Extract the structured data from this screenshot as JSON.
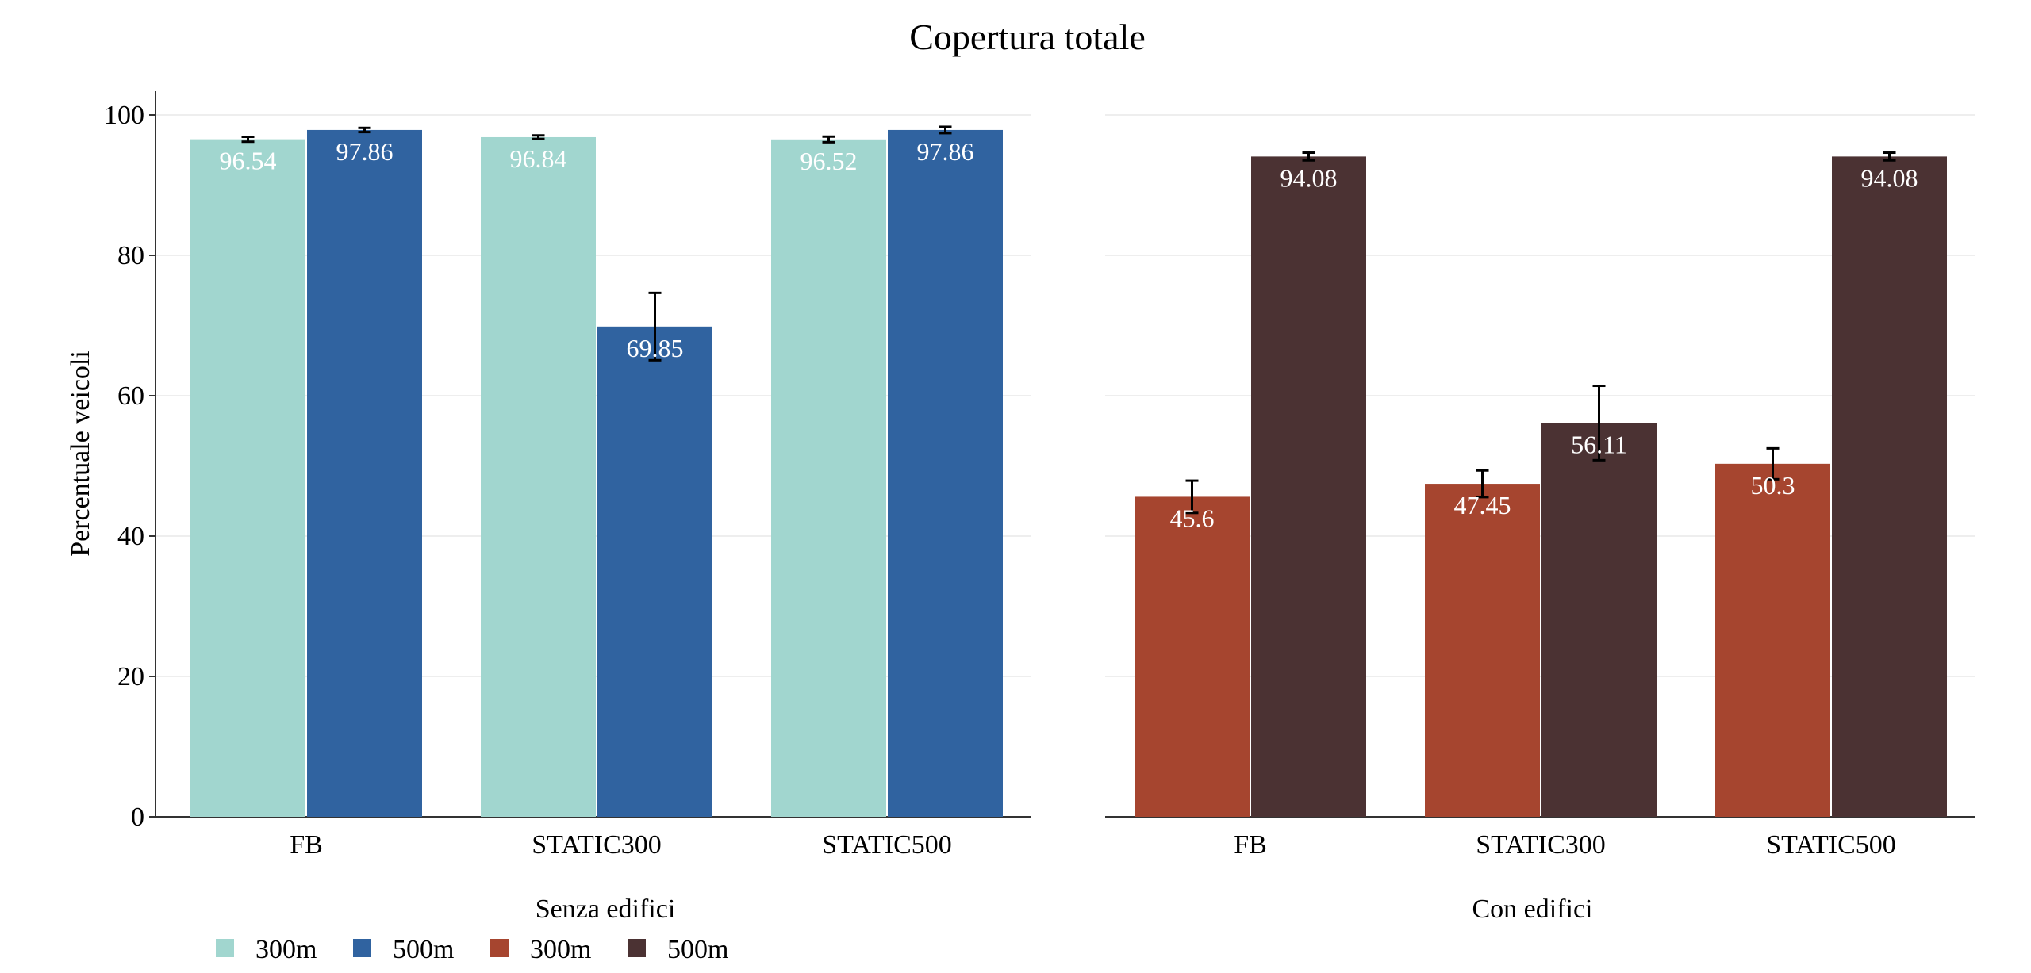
{
  "chart_data": {
    "title": "Copertura totale",
    "type": "bar",
    "ylabel": "Percentuale veicoli",
    "ylim": [
      0,
      100
    ],
    "yticks": [
      0,
      20,
      40,
      60,
      80,
      100
    ],
    "grid": true,
    "legend_position": "bottom-left",
    "panels": [
      {
        "xlabel": "Senza edifici",
        "categories": [
          "FB",
          "STATIC300",
          "STATIC500"
        ],
        "series": [
          {
            "name": "300m",
            "color": "#a1d6cf",
            "values": [
              96.54,
              96.84,
              96.52
            ],
            "errors": [
              0.35,
              0.25,
              0.4
            ],
            "labels": [
              "96.54",
              "96.84",
              "96.52"
            ]
          },
          {
            "name": "500m",
            "color": "#3063a0",
            "values": [
              97.86,
              69.85,
              97.86
            ],
            "errors": [
              0.3,
              4.8,
              0.45
            ],
            "labels": [
              "97.86",
              "69.85",
              "97.86"
            ]
          }
        ]
      },
      {
        "xlabel": "Con edifici",
        "categories": [
          "FB",
          "STATIC300",
          "STATIC500"
        ],
        "series": [
          {
            "name": "300m",
            "color": "#a6452f",
            "values": [
              45.6,
              47.45,
              50.3
            ],
            "errors": [
              2.3,
              1.9,
              2.2
            ],
            "labels": [
              "45.6",
              "47.45",
              "50.3"
            ]
          },
          {
            "name": "500m",
            "color": "#4b3233",
            "values": [
              94.08,
              56.11,
              94.08
            ],
            "errors": [
              0.55,
              5.3,
              0.55
            ],
            "labels": [
              "94.08",
              "56.11",
              "94.08"
            ]
          }
        ]
      }
    ]
  }
}
